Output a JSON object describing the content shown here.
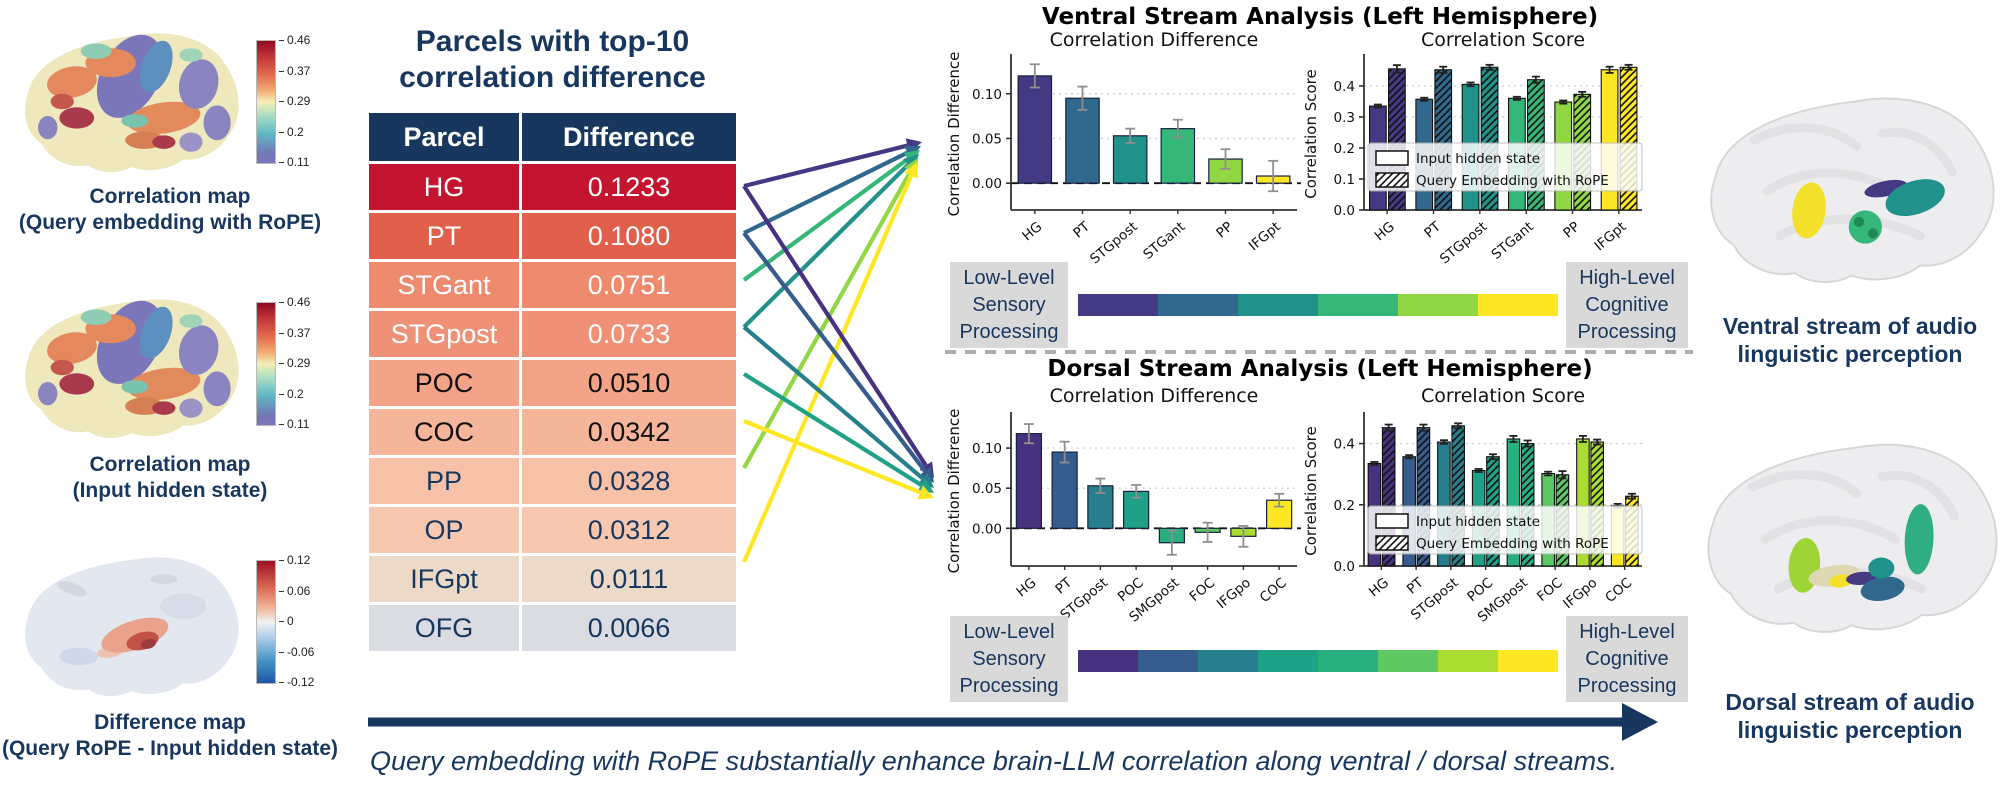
{
  "accent_color": "#17375e",
  "left_panel": {
    "maps": [
      {
        "caption_line1": "Correlation map",
        "caption_line2": "(Query embedding with RoPE)",
        "style": "correlation",
        "colorbar_ticks": [
          "0.46",
          "0.37",
          "0.29",
          "0.2",
          "0.11"
        ]
      },
      {
        "caption_line1": "Correlation map",
        "caption_line2": "(Input hidden state)",
        "style": "correlation",
        "colorbar_ticks": [
          "0.46",
          "0.37",
          "0.29",
          "0.2",
          "0.11"
        ]
      },
      {
        "caption_line1": "Difference map",
        "caption_line2": "(Query RoPE - Input hidden state)",
        "style": "difference",
        "colorbar_ticks": [
          "0.12",
          "0.06",
          "0",
          "-0.06",
          "-0.12"
        ]
      }
    ]
  },
  "table": {
    "title_line1": "Parcels with top-10",
    "title_line2": "correlation difference",
    "columns": [
      "Parcel",
      "Difference"
    ],
    "rows": [
      {
        "parcel": "HG",
        "difference": "0.1233",
        "bg": "#c3152f",
        "fg": "#ffffff"
      },
      {
        "parcel": "PT",
        "difference": "0.1080",
        "bg": "#e0604c",
        "fg": "#ffffff"
      },
      {
        "parcel": "STGant",
        "difference": "0.0751",
        "bg": "#ee8a6e",
        "fg": "#ffffff"
      },
      {
        "parcel": "STGpost",
        "difference": "0.0733",
        "bg": "#ef9177",
        "fg": "#ffffff"
      },
      {
        "parcel": "POC",
        "difference": "0.0510",
        "bg": "#f2a388",
        "fg": "#111111"
      },
      {
        "parcel": "COC",
        "difference": "0.0342",
        "bg": "#f5b59b",
        "fg": "#111111"
      },
      {
        "parcel": "PP",
        "difference": "0.0328",
        "bg": "#f6c1a7",
        "fg": "#17375e"
      },
      {
        "parcel": "OP",
        "difference": "0.0312",
        "bg": "#f7c8af",
        "fg": "#17375e"
      },
      {
        "parcel": "IFGpt",
        "difference": "0.0111",
        "bg": "#edd9c7",
        "fg": "#17375e"
      },
      {
        "parcel": "OFG",
        "difference": "0.0066",
        "bg": "#d9dce1",
        "fg": "#17375e"
      }
    ]
  },
  "panels": {
    "ventral": {
      "title": "Ventral Stream Analysis (Left Hemisphere)"
    },
    "dorsal": {
      "title": "Dorsal Stream Analysis (Left Hemisphere)"
    }
  },
  "legend": {
    "labels": [
      "Input hidden state",
      "Query Embedding with RoPE"
    ]
  },
  "gradient_labels": {
    "low": [
      "Low-Level",
      "Sensory",
      "Processing"
    ],
    "high": [
      "High-Level",
      "Cognitive",
      "Processing"
    ]
  },
  "chart_data": [
    {
      "id": "ventral_diff",
      "type": "bar",
      "title": "Correlation Difference",
      "ylabel": "Correlation Difference",
      "categories": [
        "HG",
        "PT",
        "STGpost",
        "STGant",
        "PP",
        "IFGpt"
      ],
      "values": [
        0.12,
        0.095,
        0.053,
        0.061,
        0.027,
        0.008
      ],
      "errors": [
        0.013,
        0.013,
        0.008,
        0.01,
        0.011,
        0.017
      ],
      "colors": [
        "#443983",
        "#31688e",
        "#21918c",
        "#35b779",
        "#90d743",
        "#fde725"
      ],
      "yticks": [
        0,
        0.05,
        0.1
      ],
      "ytick_labels": [
        "0.00",
        "0.05",
        "0.10"
      ],
      "ylim": [
        -0.03,
        0.14
      ],
      "zero_line": true,
      "grid": true,
      "has_legend": false
    },
    {
      "id": "ventral_score",
      "type": "grouped_bar",
      "title": "Correlation Score",
      "ylabel": "Correlation Score",
      "categories": [
        "HG",
        "PT",
        "STGpost",
        "STGant",
        "PP",
        "IFGpt"
      ],
      "series": [
        {
          "name": "Input hidden state",
          "hatch": false,
          "values": [
            0.335,
            0.357,
            0.405,
            0.36,
            0.348,
            0.452
          ],
          "errors": [
            0.005,
            0.005,
            0.006,
            0.005,
            0.005,
            0.01
          ]
        },
        {
          "name": "Query Embedding with RoPE",
          "hatch": true,
          "values": [
            0.455,
            0.452,
            0.46,
            0.42,
            0.373,
            0.46
          ],
          "errors": [
            0.012,
            0.01,
            0.008,
            0.01,
            0.008,
            0.008
          ]
        }
      ],
      "colors": [
        "#443983",
        "#31688e",
        "#21918c",
        "#35b779",
        "#90d743",
        "#fde725"
      ],
      "yticks": [
        0,
        0.1,
        0.2,
        0.3,
        0.4
      ],
      "ytick_labels": [
        "0.0",
        "0.1",
        "0.2",
        "0.3",
        "0.4"
      ],
      "ylim": [
        0,
        0.49
      ],
      "zero_line": false,
      "grid": true,
      "has_legend": true
    },
    {
      "id": "dorsal_diff",
      "type": "bar",
      "title": "Correlation Difference",
      "ylabel": "Correlation Difference",
      "categories": [
        "HG",
        "PT",
        "STGpost",
        "POC",
        "SMGpost",
        "FOC",
        "IFGpo",
        "COC"
      ],
      "values": [
        0.118,
        0.095,
        0.053,
        0.046,
        -0.018,
        -0.005,
        -0.01,
        0.035
      ],
      "errors": [
        0.012,
        0.013,
        0.009,
        0.008,
        0.015,
        0.012,
        0.013,
        0.008
      ],
      "colors": [
        "#46327e",
        "#365c8d",
        "#277f8e",
        "#1fa187",
        "#29af7f",
        "#5ec962",
        "#aadc32",
        "#fde725"
      ],
      "yticks": [
        0,
        0.05,
        0.1
      ],
      "ytick_labels": [
        "0.00",
        "0.05",
        "0.10"
      ],
      "ylim": [
        -0.047,
        0.14
      ],
      "zero_line": true,
      "grid": true,
      "has_legend": false
    },
    {
      "id": "dorsal_score",
      "type": "grouped_bar",
      "title": "Correlation Score",
      "ylabel": "Correlation Score",
      "categories": [
        "HG",
        "PT",
        "STGpost",
        "POC",
        "SMGpost",
        "FOC",
        "IFGpo",
        "COC"
      ],
      "series": [
        {
          "name": "Input hidden state",
          "hatch": false,
          "values": [
            0.335,
            0.357,
            0.405,
            0.312,
            0.415,
            0.302,
            0.415,
            0.197
          ],
          "errors": [
            0.005,
            0.005,
            0.006,
            0.005,
            0.01,
            0.006,
            0.01,
            0.006
          ]
        },
        {
          "name": "Query Embedding with RoPE",
          "hatch": true,
          "values": [
            0.452,
            0.452,
            0.458,
            0.357,
            0.4,
            0.298,
            0.405,
            0.228
          ],
          "errors": [
            0.01,
            0.01,
            0.008,
            0.008,
            0.01,
            0.012,
            0.008,
            0.008
          ]
        }
      ],
      "colors": [
        "#46327e",
        "#365c8d",
        "#277f8e",
        "#1fa187",
        "#29af7f",
        "#5ec962",
        "#aadc32",
        "#fde725"
      ],
      "yticks": [
        0,
        0.2,
        0.4
      ],
      "ytick_labels": [
        "0.0",
        "0.2",
        "0.4"
      ],
      "ylim": [
        0,
        0.49
      ],
      "zero_line": false,
      "grid": true,
      "has_legend": true
    }
  ],
  "arrows": {
    "ventral": [
      {
        "parcel": "HG",
        "row": 0,
        "color": "#443983"
      },
      {
        "parcel": "PT",
        "row": 1,
        "color": "#31688e"
      },
      {
        "parcel": "STGant",
        "row": 2,
        "color": "#35b779"
      },
      {
        "parcel": "STGpost",
        "row": 3,
        "color": "#21918c"
      },
      {
        "parcel": "PP",
        "row": 6,
        "color": "#90d743"
      },
      {
        "parcel": "IFGpt",
        "row": 8,
        "color": "#fde725"
      }
    ],
    "dorsal": [
      {
        "parcel": "HG",
        "row": 0,
        "color": "#46327e"
      },
      {
        "parcel": "PT",
        "row": 1,
        "color": "#365c8d"
      },
      {
        "parcel": "STGpost",
        "row": 3,
        "color": "#277f8e"
      },
      {
        "parcel": "POC",
        "row": 4,
        "color": "#1fa187"
      },
      {
        "parcel": "COC",
        "row": 5,
        "color": "#fde725"
      }
    ]
  },
  "right_panel": {
    "ventral_caption": [
      "Ventral stream of audio",
      "linguistic perception"
    ],
    "dorsal_caption": [
      "Dorsal stream of audio",
      "linguistic perception"
    ]
  },
  "footer": {
    "caption": "Query embedding with RoPE substantially enhance brain-LLM correlation along ventral / dorsal streams."
  }
}
